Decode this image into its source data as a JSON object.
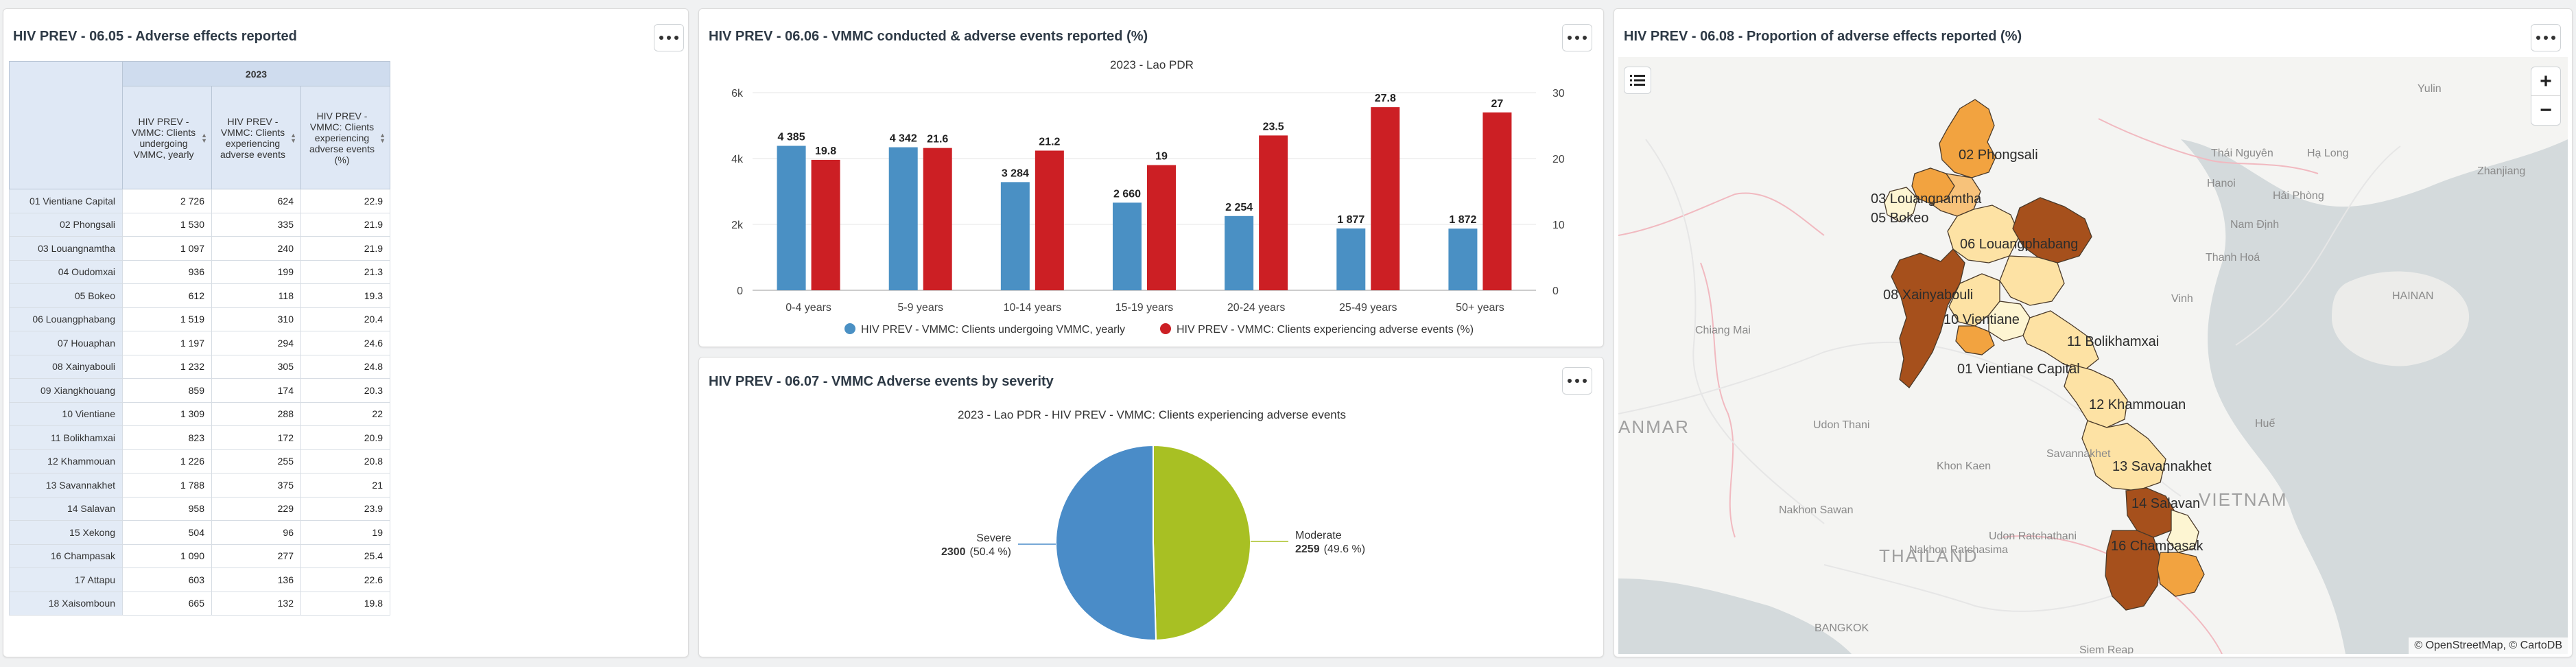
{
  "panels": {
    "table": {
      "title": "HIV PREV - 06.05 - Adverse effects reported"
    },
    "bar": {
      "title": "HIV PREV - 06.06 - VMMC conducted & adverse events reported (%)",
      "subtitle": "2023 - Lao PDR"
    },
    "pie": {
      "title": "HIV PREV - 06.07 - VMMC Adverse events by severity",
      "subtitle": "2023 - Lao PDR - HIV PREV - VMMC: Clients experiencing adverse events"
    },
    "map": {
      "title": "HIV PREV - 06.08 - Proportion of adverse effects reported (%)"
    }
  },
  "table": {
    "year": "2023",
    "columns": [
      "HIV PREV - VMMC: Clients undergoing VMMC, yearly",
      "HIV PREV - VMMC: Clients experiencing adverse events",
      "HIV PREV - VMMC: Clients experiencing adverse events (%)"
    ],
    "rows": [
      {
        "label": "01 Vientiane Capital",
        "v1": "2 726",
        "v2": "624",
        "v3": "22.9"
      },
      {
        "label": "02 Phongsali",
        "v1": "1 530",
        "v2": "335",
        "v3": "21.9"
      },
      {
        "label": "03 Louangnamtha",
        "v1": "1 097",
        "v2": "240",
        "v3": "21.9"
      },
      {
        "label": "04 Oudomxai",
        "v1": "936",
        "v2": "199",
        "v3": "21.3"
      },
      {
        "label": "05 Bokeo",
        "v1": "612",
        "v2": "118",
        "v3": "19.3"
      },
      {
        "label": "06 Louangphabang",
        "v1": "1 519",
        "v2": "310",
        "v3": "20.4"
      },
      {
        "label": "07 Houaphan",
        "v1": "1 197",
        "v2": "294",
        "v3": "24.6"
      },
      {
        "label": "08 Xainyabouli",
        "v1": "1 232",
        "v2": "305",
        "v3": "24.8"
      },
      {
        "label": "09 Xiangkhouang",
        "v1": "859",
        "v2": "174",
        "v3": "20.3"
      },
      {
        "label": "10 Vientiane",
        "v1": "1 309",
        "v2": "288",
        "v3": "22"
      },
      {
        "label": "11 Bolikhamxai",
        "v1": "823",
        "v2": "172",
        "v3": "20.9"
      },
      {
        "label": "12 Khammouan",
        "v1": "1 226",
        "v2": "255",
        "v3": "20.8"
      },
      {
        "label": "13 Savannakhet",
        "v1": "1 788",
        "v2": "375",
        "v3": "21"
      },
      {
        "label": "14 Salavan",
        "v1": "958",
        "v2": "229",
        "v3": "23.9"
      },
      {
        "label": "15 Xekong",
        "v1": "504",
        "v2": "96",
        "v3": "19"
      },
      {
        "label": "16 Champasak",
        "v1": "1 090",
        "v2": "277",
        "v3": "25.4"
      },
      {
        "label": "17 Attapu",
        "v1": "603",
        "v2": "136",
        "v3": "22.6"
      },
      {
        "label": "18 Xaisomboun",
        "v1": "665",
        "v2": "132",
        "v3": "19.8"
      }
    ]
  },
  "chart_data": [
    {
      "type": "bar",
      "title": "2023 - Lao PDR",
      "categories": [
        "0-4 years",
        "5-9 years",
        "10-14 years",
        "15-19 years",
        "20-24 years",
        "25-49 years",
        "50+ years"
      ],
      "series": [
        {
          "name": "HIV PREV - VMMC: Clients undergoing VMMC, yearly",
          "axis": "left",
          "color": "#4a90c4",
          "values": [
            4385,
            4342,
            3284,
            2660,
            2254,
            1877,
            1872
          ],
          "labels": [
            "4 385",
            "4 342",
            "3 284",
            "2 660",
            "2 254",
            "1 877",
            "1 872"
          ]
        },
        {
          "name": "HIV PREV - VMMC: Clients experiencing adverse events (%)",
          "axis": "right",
          "color": "#cc1f24",
          "values": [
            19.8,
            21.6,
            21.2,
            19,
            23.5,
            27.8,
            27
          ],
          "labels": [
            "19.8",
            "21.6",
            "21.2",
            "19",
            "23.5",
            "27.8",
            "27"
          ]
        }
      ],
      "left_axis": {
        "ticks": [
          "0",
          "2k",
          "4k",
          "6k"
        ],
        "ylim": [
          0,
          6000
        ]
      },
      "right_axis": {
        "ticks": [
          "0",
          "10",
          "20",
          "30"
        ],
        "ylim": [
          0,
          30
        ]
      },
      "grid": true,
      "legend": "bottom"
    },
    {
      "type": "pie",
      "title": "2023 - Lao PDR - HIV PREV - VMMC: Clients experiencing adverse events",
      "slices": [
        {
          "name": "Severe",
          "value": 2300,
          "value_label": "2300",
          "pct": "(50.4 %)",
          "color": "#4a8cc8"
        },
        {
          "name": "Moderate",
          "value": 2259,
          "value_label": "2259",
          "pct": "(49.6 %)",
          "color": "#a8c023"
        }
      ]
    }
  ],
  "map": {
    "attribution": "© OpenStreetMap, © CartoDB",
    "zoom_in": "+",
    "zoom_out": "−",
    "legend_icon": "list-icon",
    "province_labels": [
      "02 Phongsali",
      "03 Louangnamtha",
      "05 Bokeo",
      "06 Louangphabang",
      "08 Xainyabouli",
      "10 Vientiane",
      "11 Bolikhamxai",
      "01 Vientiane Capital",
      "12 Khammouan",
      "13 Savannakhet",
      "14 Salavan",
      "16 Champasak"
    ],
    "background_labels": [
      "Yulin",
      "Thái Nguyên",
      "Hạ Long",
      "Hanoi",
      "Hải Phòng",
      "Zhanjiang",
      "Nam Định",
      "Thanh Hoá",
      "Vinh",
      "HAINAN",
      "Huế",
      "Chiang Mai",
      "Udon Thani",
      "Khon Kaen",
      "Savannakhet",
      "Nakhon Sawan",
      "Nakhon Ratchasima",
      "Udon Ratchathani",
      "THAILAND",
      "BANGKOK",
      "Siem Reap",
      "VIETNAM",
      "ANMAR"
    ]
  }
}
